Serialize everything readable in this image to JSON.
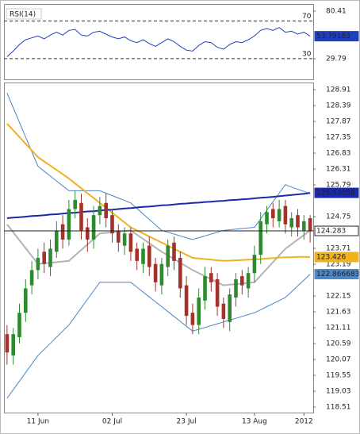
{
  "chart_data": [
    {
      "type": "line",
      "title": "RSI(14)",
      "ylim": [
        8,
        88
      ],
      "yticks": [
        80.41,
        29.79
      ],
      "levels": [
        70,
        30
      ],
      "series": [
        {
          "color": "#1f3fbf",
          "values": [
            32,
            38,
            45,
            50,
            52,
            54,
            51,
            55,
            58,
            55,
            60,
            61,
            55,
            54,
            58,
            59,
            56,
            53,
            51,
            53,
            49,
            47,
            50,
            46,
            43,
            47,
            51,
            48,
            43,
            39,
            38,
            44,
            48,
            47,
            42,
            40,
            45,
            48,
            47,
            50,
            54,
            60,
            62,
            60,
            63,
            58,
            59,
            56,
            58,
            53.79183
          ]
        }
      ]
    },
    {
      "type": "candlestick",
      "categories": [
        null,
        null,
        null,
        null,
        null,
        "11 Jun",
        null,
        null,
        null,
        null,
        null,
        null,
        null,
        null,
        null,
        null,
        null,
        "02 Jul",
        null,
        null,
        null,
        null,
        null,
        null,
        null,
        null,
        null,
        null,
        null,
        "23 Jul",
        null,
        null,
        null,
        null,
        null,
        null,
        null,
        null,
        null,
        null,
        "13 Aug",
        null,
        null,
        null,
        null,
        null,
        null,
        null,
        "2012",
        null
      ],
      "ylim": [
        118.33,
        129.12
      ],
      "yticks": [
        128.91,
        128.39,
        127.87,
        127.35,
        126.83,
        126.31,
        125.79,
        124.75,
        123.71,
        123.19,
        122.15,
        121.63,
        121.11,
        120.59,
        120.07,
        119.55,
        119.03,
        118.51
      ],
      "up_color": "#2f8a2f",
      "down_color": "#a3322b",
      "open": [
        120.9,
        120.2,
        120.8,
        121.6,
        122.5,
        123.0,
        123.6,
        123.1,
        123.6,
        124.5,
        124.0,
        125.0,
        125.2,
        124.4,
        124.0,
        124.8,
        125.2,
        124.8,
        124.3,
        123.8,
        124.2,
        123.7,
        123.2,
        123.8,
        123.2,
        122.5,
        123.1,
        123.9,
        123.4,
        122.5,
        121.6,
        121.2,
        122.0,
        122.9,
        122.7,
        121.9,
        121.3,
        122.1,
        122.8,
        122.4,
        122.9,
        123.5,
        124.5,
        125.0,
        124.6,
        125.1,
        124.4,
        124.8,
        124.3,
        124.7
      ],
      "high": [
        121.2,
        121.1,
        121.9,
        122.7,
        123.3,
        123.7,
        123.9,
        124.0,
        124.6,
        124.8,
        125.3,
        125.6,
        125.5,
        124.7,
        125.1,
        125.4,
        125.5,
        125.0,
        124.5,
        124.4,
        124.4,
        123.9,
        123.9,
        124.1,
        123.4,
        123.4,
        124.0,
        124.1,
        123.6,
        122.8,
        121.9,
        122.4,
        123.1,
        123.1,
        122.9,
        122.1,
        122.4,
        122.9,
        123.0,
        123.1,
        123.8,
        124.9,
        125.1,
        125.2,
        125.3,
        125.3,
        124.9,
        125.0,
        124.8,
        124.8
      ],
      "low": [
        119.9,
        119.9,
        120.6,
        121.3,
        122.2,
        122.7,
        122.9,
        122.8,
        123.4,
        123.7,
        123.8,
        124.7,
        124.0,
        123.6,
        123.7,
        124.5,
        124.4,
        123.9,
        123.6,
        123.5,
        123.3,
        123.0,
        122.9,
        122.8,
        122.3,
        122.2,
        122.8,
        123.0,
        122.1,
        121.2,
        120.9,
        120.9,
        121.7,
        122.3,
        121.5,
        121.1,
        121.0,
        121.8,
        122.2,
        122.1,
        122.6,
        123.2,
        124.2,
        124.4,
        124.4,
        124.2,
        124.1,
        124.1,
        124.0,
        123.9
      ],
      "close": [
        120.3,
        120.9,
        121.6,
        122.4,
        123.0,
        123.4,
        123.2,
        123.7,
        124.3,
        124.0,
        125.0,
        125.3,
        124.3,
        124.0,
        124.8,
        125.1,
        124.7,
        124.2,
        123.9,
        124.2,
        123.6,
        123.3,
        123.7,
        123.1,
        122.6,
        123.2,
        123.8,
        123.3,
        122.4,
        121.5,
        121.2,
        122.1,
        122.8,
        122.6,
        121.8,
        121.4,
        122.2,
        122.7,
        122.5,
        122.9,
        123.5,
        124.6,
        124.9,
        124.7,
        125.0,
        124.5,
        124.7,
        124.4,
        124.6,
        124.283
      ],
      "series": [
        {
          "color": "#4a86c8",
          "width": 1,
          "values": [
            128.8,
            128.32,
            127.84,
            127.36,
            126.88,
            126.4,
            126.24,
            126.08,
            125.92,
            125.76,
            125.6,
            125.6,
            125.6,
            125.6,
            125.6,
            125.6,
            125.52,
            125.44,
            125.36,
            125.28,
            125.2,
            125.02,
            124.84,
            124.66,
            124.48,
            124.3,
            124.24,
            124.18,
            124.12,
            124.06,
            124.0,
            124.06,
            124.12,
            124.18,
            124.24,
            124.3,
            124.32,
            124.34,
            124.36,
            124.38,
            124.4,
            124.68,
            124.96,
            125.24,
            125.52,
            125.8,
            125.72,
            125.65,
            125.58,
            125.5
          ]
        },
        {
          "color": "#4a86c8",
          "width": 1,
          "values": [
            118.8,
            119.08,
            119.36,
            119.64,
            119.92,
            120.2,
            120.4,
            120.6,
            120.8,
            121.0,
            121.2,
            121.48,
            121.76,
            122.04,
            122.32,
            122.6,
            122.6,
            122.6,
            122.6,
            122.6,
            122.6,
            122.44,
            122.28,
            122.12,
            121.96,
            121.8,
            121.64,
            121.48,
            121.32,
            121.16,
            121.0,
            121.06,
            121.12,
            121.18,
            121.24,
            121.3,
            121.36,
            121.42,
            121.48,
            121.54,
            121.6,
            121.7,
            121.8,
            121.9,
            122.0,
            122.1,
            122.29,
            122.48,
            122.67,
            122.866683
          ]
        },
        {
          "color": "#b4b4b4",
          "width": 2,
          "values": [
            124.5,
            124.24,
            123.98,
            123.72,
            123.46,
            123.2,
            123.22,
            123.24,
            123.26,
            123.28,
            123.3,
            123.48,
            123.66,
            123.84,
            124.02,
            124.2,
            124.22,
            124.24,
            124.26,
            124.28,
            124.3,
            124.16,
            124.02,
            123.88,
            123.74,
            123.6,
            123.48,
            123.36,
            123.24,
            123.12,
            123.0,
            122.9,
            122.8,
            122.7,
            122.6,
            122.5,
            122.52,
            122.54,
            122.56,
            122.58,
            122.6,
            122.82,
            123.04,
            123.26,
            123.48,
            123.7,
            123.85,
            124.0,
            124.15,
            124.3
          ]
        },
        {
          "color": "#f0b21e",
          "width": 2,
          "values": [
            127.8,
            127.58,
            127.36,
            127.14,
            126.92,
            126.7,
            126.56,
            126.42,
            126.28,
            126.14,
            126.0,
            125.84,
            125.68,
            125.52,
            125.36,
            125.2,
            125.04,
            124.88,
            124.72,
            124.56,
            124.4,
            124.3,
            124.2,
            124.1,
            124.0,
            123.9,
            123.8,
            123.7,
            123.6,
            123.5,
            123.4,
            123.38,
            123.36,
            123.34,
            123.32,
            123.3,
            123.31,
            123.32,
            123.33,
            123.34,
            123.35,
            123.36,
            123.38,
            123.39,
            123.41,
            123.42,
            123.42,
            123.43,
            123.43,
            123.426
          ]
        },
        {
          "color": "#1a2aa8",
          "width": 2,
          "values": [
            124.7,
            124.72,
            124.73,
            124.75,
            124.77,
            124.78,
            124.8,
            124.82,
            124.83,
            124.85,
            124.87,
            124.88,
            124.9,
            124.92,
            124.93,
            124.95,
            124.97,
            124.98,
            125.0,
            125.02,
            125.03,
            125.05,
            125.07,
            125.08,
            125.1,
            125.12,
            125.13,
            125.15,
            125.17,
            125.18,
            125.2,
            125.21,
            125.23,
            125.24,
            125.26,
            125.27,
            125.29,
            125.3,
            125.32,
            125.33,
            125.35,
            125.37,
            125.38,
            125.4,
            125.42,
            125.44,
            125.46,
            125.48,
            125.5,
            125.53058
          ]
        }
      ]
    }
  ]
}
